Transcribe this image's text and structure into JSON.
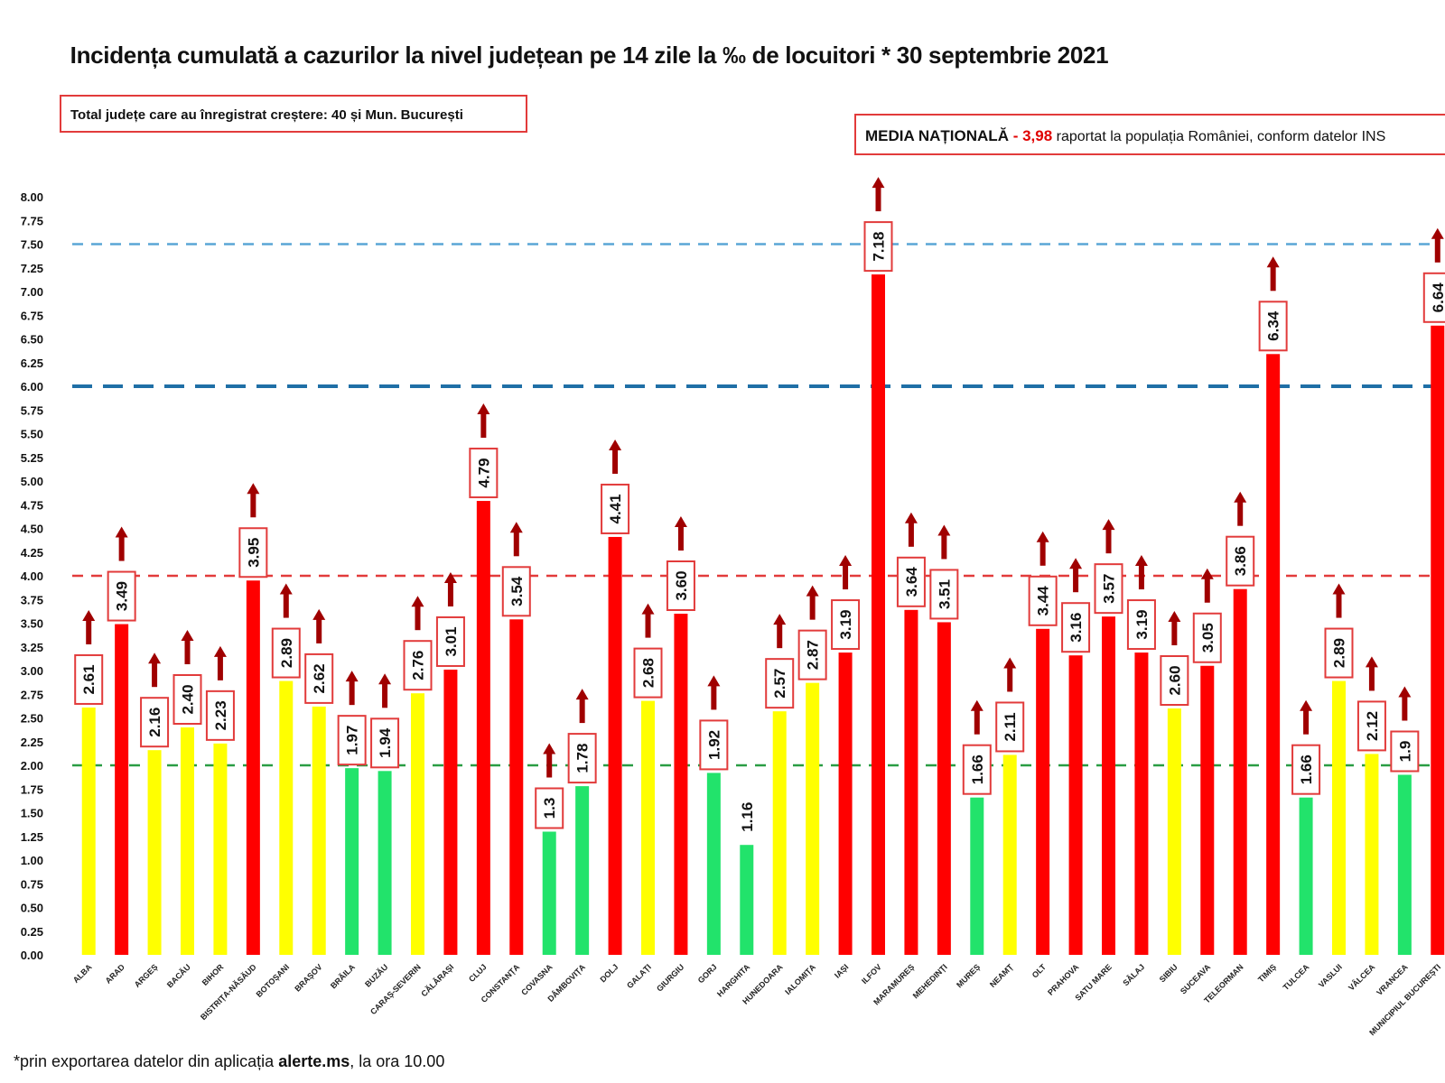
{
  "chart_data": {
    "type": "bar",
    "title": "Incidența cumulată a cazurilor la nivel județean pe 14 zile la ‰ de locuitori * 30 septembrie 2021",
    "ylim": [
      0,
      8
    ],
    "yticks": [
      "0.00",
      "0.25",
      "0.50",
      "0.75",
      "1.00",
      "1.25",
      "1.50",
      "1.75",
      "2.00",
      "2.25",
      "2.50",
      "2.75",
      "3.00",
      "3.25",
      "3.50",
      "3.75",
      "4.00",
      "4.25",
      "4.50",
      "4.75",
      "5.00",
      "5.25",
      "5.50",
      "5.75",
      "6.00",
      "6.25",
      "6.50",
      "6.75",
      "7.00",
      "7.25",
      "7.50",
      "7.75",
      "8.00"
    ],
    "grid": false,
    "categories": [
      "ALBA",
      "ARAD",
      "ARGEȘ",
      "BACĂU",
      "BIHOR",
      "BISTRIȚA-NĂSĂUD",
      "BOTOȘANI",
      "BRAȘOV",
      "BRĂILA",
      "BUZĂU",
      "CARAȘ-SEVERIN",
      "CĂLĂRAȘI",
      "CLUJ",
      "CONSTANȚA",
      "COVASNA",
      "DÂMBOVIȚA",
      "DOLJ",
      "GALAȚI",
      "GIURGIU",
      "GORJ",
      "HARGHITA",
      "HUNEDOARA",
      "IALOMIȚA",
      "IAȘI",
      "ILFOV",
      "MARAMUREȘ",
      "MEHEDINȚI",
      "MUREȘ",
      "NEAMȚ",
      "OLT",
      "PRAHOVA",
      "SATU MARE",
      "SĂLAJ",
      "SIBIU",
      "SUCEAVA",
      "TELEORMAN",
      "TIMIȘ",
      "TULCEA",
      "VASLUI",
      "VÂLCEA",
      "VRANCEA",
      "MUNICIPIUL BUCUREȘTI"
    ],
    "values": [
      2.61,
      3.49,
      2.16,
      2.4,
      2.23,
      3.95,
      2.89,
      2.62,
      1.97,
      1.94,
      2.76,
      3.01,
      4.79,
      3.54,
      1.3,
      1.78,
      4.41,
      2.68,
      3.6,
      1.92,
      1.16,
      2.57,
      2.87,
      3.19,
      7.18,
      3.64,
      3.51,
      1.66,
      2.11,
      3.44,
      3.16,
      3.57,
      3.19,
      2.6,
      3.05,
      3.86,
      6.34,
      1.66,
      2.89,
      2.12,
      1.9,
      6.64
    ],
    "labels": [
      "2.61",
      "3.49",
      "2.16",
      "2.40",
      "2.23",
      "3.95",
      "2.89",
      "2.62",
      "1.97",
      "1.94",
      "2.76",
      "3.01",
      "4.79",
      "3.54",
      "1.3",
      "1.78",
      "4.41",
      "2.68",
      "3.60",
      "1.92",
      "1.16",
      "2.57",
      "2.87",
      "3.19",
      "7.18",
      "3.64",
      "3.51",
      "1.66",
      "2.11",
      "3.44",
      "3.16",
      "3.57",
      "3.19",
      "2.60",
      "3.05",
      "3.86",
      "6.34",
      "1.66",
      "2.89",
      "2.12",
      "1.9",
      "6.64"
    ],
    "increase": [
      true,
      true,
      true,
      true,
      true,
      true,
      true,
      true,
      true,
      true,
      true,
      true,
      true,
      true,
      true,
      true,
      true,
      true,
      true,
      true,
      false,
      true,
      true,
      true,
      true,
      true,
      true,
      true,
      true,
      true,
      true,
      true,
      true,
      true,
      true,
      true,
      true,
      true,
      true,
      true,
      true,
      true
    ],
    "color_bands": [
      {
        "max": 2.0,
        "color": "#22e36b"
      },
      {
        "max": 3.0,
        "color": "#ffff00"
      },
      {
        "max": 99,
        "color": "#ff0000"
      }
    ],
    "threshold_lines": [
      {
        "value": 2.0,
        "color": "#2a9d44"
      },
      {
        "value": 4.0,
        "color": "#e23b3b"
      },
      {
        "value": 6.0,
        "color": "#1f6fa6"
      },
      {
        "value": 7.5,
        "color": "#5aa6d6"
      }
    ],
    "arrow_color": "#a00000"
  },
  "notes": {
    "total_box": "Total județe care au înregistrat creștere:  40 și Mun. București",
    "media_label": "MEDIA NAȚIONALĂ",
    "media_dash": " - ",
    "media_value": "3,98",
    "media_rest": " raportat la populația României, conform datelor INS"
  },
  "footnote": {
    "prefix": "*prin exportarea  datelor din aplicația ",
    "app": "alerte.ms",
    "suffix": ", la ora 10.00"
  }
}
